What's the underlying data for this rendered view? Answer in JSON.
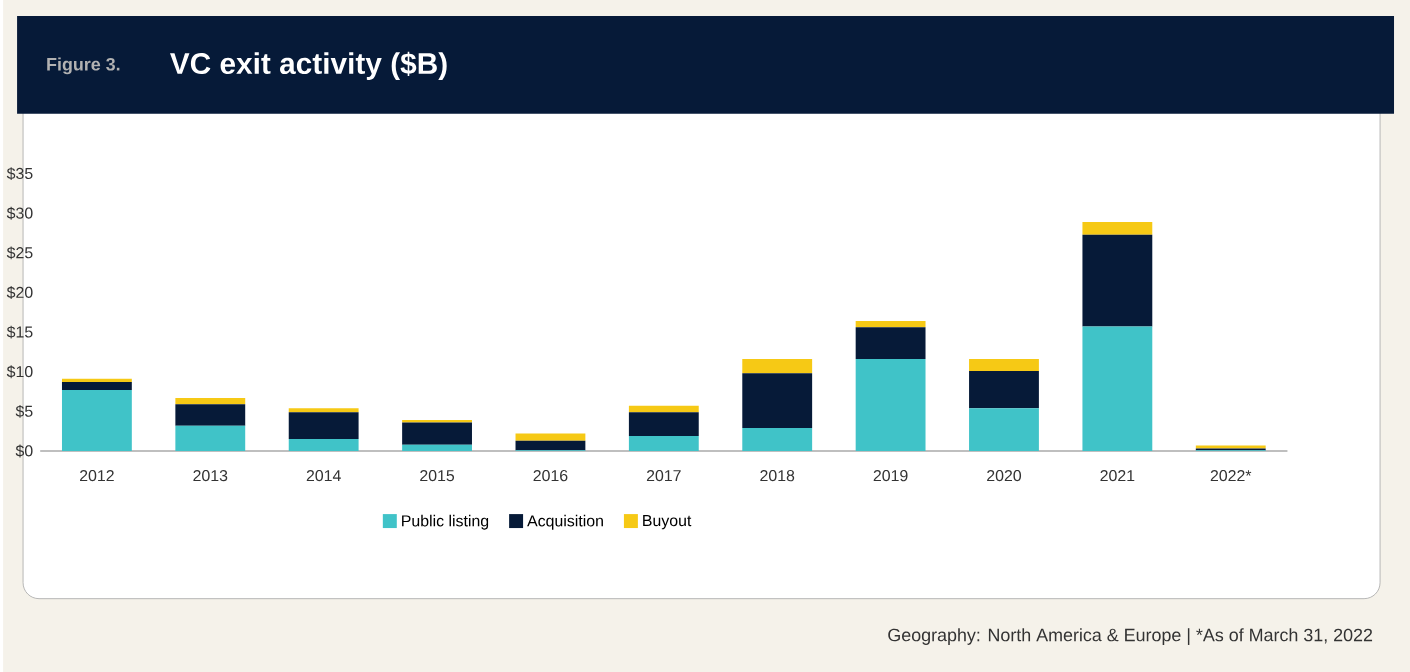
{
  "chart_data": {
    "type": "bar",
    "title": "VC exit activity ($B)",
    "subtitle": "Figure 3.",
    "categories": [
      "2012",
      "2013",
      "2014",
      "2015",
      "2016",
      "2017",
      "2018",
      "2019",
      "2020",
      "2021",
      "2022*"
    ],
    "stacked": true,
    "series": [
      {
        "name": "Public listing",
        "color": "#40c3c8",
        "values": [
          7.7,
          3.2,
          1.5,
          0.8,
          0.1,
          1.9,
          2.9,
          11.6,
          5.4,
          15.7,
          0.1
        ]
      },
      {
        "name": "Acquisition",
        "color": "#061a38",
        "values": [
          1.0,
          2.7,
          3.4,
          2.8,
          1.2,
          3.0,
          6.9,
          4.0,
          4.7,
          11.6,
          0.2
        ]
      },
      {
        "name": "Buyout",
        "color": "#f6c915",
        "values": [
          0.4,
          0.8,
          0.5,
          0.3,
          0.9,
          0.8,
          1.8,
          0.8,
          1.5,
          1.6,
          0.4
        ]
      }
    ],
    "ylim": [
      0,
      35
    ],
    "yticks": [
      {
        "value": 0,
        "label": "$0"
      },
      {
        "value": 5,
        "label": "$5"
      },
      {
        "value": 10,
        "label": "$10"
      },
      {
        "value": 15,
        "label": "$15"
      },
      {
        "value": 20,
        "label": "$20"
      },
      {
        "value": 25,
        "label": "$25"
      },
      {
        "value": 30,
        "label": "$30"
      },
      {
        "value": 35,
        "label": "$35"
      }
    ],
    "legend": "bottom",
    "annotations": [
      "Geography: North America & Europe | *As of March 31, 2022"
    ]
  }
}
